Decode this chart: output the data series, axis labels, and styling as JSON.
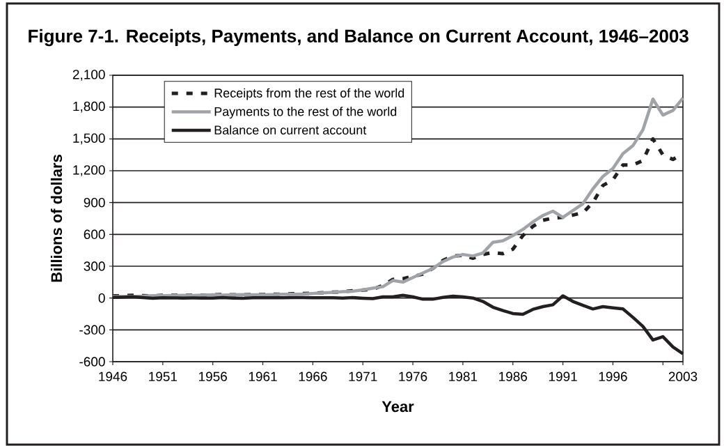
{
  "chart_data": {
    "type": "line",
    "title": "Figure 7-1. Receipts, Payments, and Balance on Current Account, 1946–2003",
    "xlabel": "Year",
    "ylabel": "Billions of dollars",
    "x": [
      1946,
      1947,
      1948,
      1949,
      1950,
      1951,
      1952,
      1953,
      1954,
      1955,
      1956,
      1957,
      1958,
      1959,
      1960,
      1961,
      1962,
      1963,
      1964,
      1965,
      1966,
      1967,
      1968,
      1969,
      1970,
      1971,
      1972,
      1973,
      1974,
      1975,
      1976,
      1977,
      1978,
      1979,
      1980,
      1981,
      1982,
      1983,
      1984,
      1985,
      1986,
      1987,
      1988,
      1989,
      1990,
      1991,
      1992,
      1993,
      1994,
      1995,
      1996,
      1997,
      1998,
      1999,
      2000,
      2001,
      2002,
      2003
    ],
    "series": [
      {
        "name": "Receipts from the rest of the world",
        "color": "#231f20",
        "line_style": "dashed",
        "values": [
          20,
          22,
          25,
          22,
          20,
          25,
          25,
          25,
          25,
          27,
          30,
          32,
          30,
          30,
          32,
          33,
          35,
          37,
          40,
          42,
          45,
          50,
          55,
          60,
          68,
          75,
          83,
          118,
          176,
          182,
          204,
          225,
          279,
          354,
          396,
          403,
          375,
          411,
          429,
          418,
          461,
          589,
          675,
          733,
          754,
          761,
          782,
          804,
          900,
          1061,
          1114,
          1254,
          1254,
          1296,
          1500,
          1350,
          1307,
          1361
        ]
      },
      {
        "name": "Payments to the rest of the world",
        "color": "#a0a3a7",
        "line_style": "solid",
        "values": [
          14,
          14,
          14,
          18,
          22,
          22,
          24,
          25,
          24,
          27,
          30,
          28,
          30,
          33,
          30,
          30,
          33,
          35,
          35,
          38,
          43,
          48,
          53,
          60,
          64,
          77,
          93,
          107,
          165,
          150,
          193,
          236,
          279,
          343,
          386,
          411,
          396,
          424,
          525,
          540,
          589,
          647,
          718,
          778,
          819,
          761,
          825,
          889,
          1029,
          1146,
          1221,
          1361,
          1436,
          1586,
          1875,
          1725,
          1768,
          1886
        ]
      },
      {
        "name": "Balance on current account",
        "color": "#231f20",
        "line_style": "solid",
        "values": [
          6,
          8,
          11,
          4,
          -2,
          3,
          1,
          0,
          1,
          0,
          0,
          4,
          0,
          -3,
          2,
          3,
          2,
          2,
          5,
          4,
          2,
          2,
          2,
          0,
          4,
          -2,
          -6,
          11,
          11,
          26,
          11,
          -11,
          -11,
          6,
          17,
          11,
          0,
          -32,
          -86,
          -118,
          -146,
          -154,
          -107,
          -81,
          -64,
          21,
          -32,
          -69,
          -103,
          -81,
          -92,
          -103,
          -182,
          -268,
          -396,
          -364,
          -461,
          -525
        ]
      }
    ],
    "xlim": [
      1946,
      2003
    ],
    "xticks": [
      1946,
      1951,
      1956,
      1961,
      1966,
      1971,
      1976,
      1981,
      1986,
      1991,
      1996,
      {
        "value": 2001,
        "label": null
      },
      2003
    ],
    "ylim": [
      -600,
      2100
    ],
    "yticks": [
      {
        "value": -600,
        "label": "-600"
      },
      {
        "value": -300,
        "label": "-300"
      },
      {
        "value": 0,
        "label": "0"
      },
      {
        "value": 300,
        "label": "300"
      },
      {
        "value": 600,
        "label": "600"
      },
      {
        "value": 900,
        "label": "900"
      },
      {
        "value": 1200,
        "label": "1,200"
      },
      {
        "value": 1500,
        "label": "1,500"
      },
      {
        "value": 1800,
        "label": "1,800"
      },
      {
        "value": 2100,
        "label": "2,100"
      }
    ],
    "grid": "y",
    "legend": "top left",
    "marker": "none"
  }
}
